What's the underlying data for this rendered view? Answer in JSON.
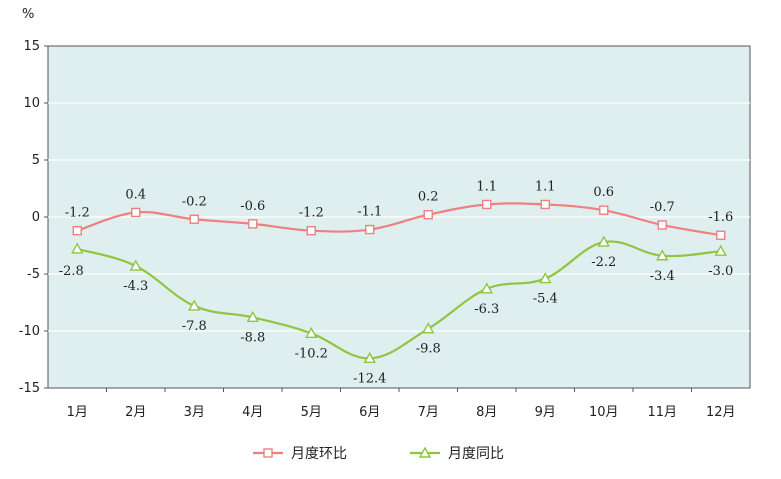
{
  "chart_data": {
    "type": "line",
    "unit_label": "%",
    "categories": [
      "1月",
      "2月",
      "3月",
      "4月",
      "5月",
      "6月",
      "7月",
      "8月",
      "9月",
      "10月",
      "11月",
      "12月"
    ],
    "ylim": [
      -15,
      15
    ],
    "yticks": [
      15,
      10,
      5,
      0,
      -5,
      -10,
      -15
    ],
    "grid": true,
    "legend_placement": "bottom-center",
    "series": [
      {
        "name": "月度环比",
        "color": "#f08080",
        "marker": "square",
        "values": [
          -1.2,
          0.4,
          -0.2,
          -0.6,
          -1.2,
          -1.1,
          0.2,
          1.1,
          1.1,
          0.6,
          -0.7,
          -1.6
        ],
        "labels": [
          "-1.2",
          "0.4",
          "-0.2",
          "-0.6",
          "-1.2",
          "-1.1",
          "0.2",
          "1.1",
          "1.1",
          "0.6",
          "-0.7",
          "-1.6"
        ]
      },
      {
        "name": "月度同比",
        "color": "#8ec63f",
        "marker": "triangle",
        "values": [
          -2.8,
          -4.3,
          -7.8,
          -8.8,
          -10.2,
          -12.4,
          -9.8,
          -6.3,
          -5.4,
          -2.2,
          -3.4,
          -3.0
        ],
        "labels": [
          "-2.8",
          "-4.3",
          "-7.8",
          "-8.8",
          "-10.2",
          "-12.4",
          "-9.8",
          "-6.3",
          "-5.4",
          "-2.2",
          "-3.4",
          "-3.0"
        ]
      }
    ],
    "plot_bg": "#dfeeee"
  }
}
